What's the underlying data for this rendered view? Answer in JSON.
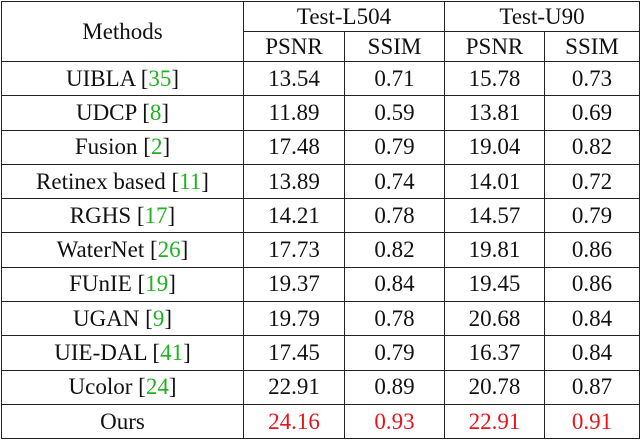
{
  "table": {
    "header": {
      "methods": "Methods",
      "groups": [
        "Test-L504",
        "Test-U90"
      ],
      "metrics": [
        "PSNR",
        "SSIM",
        "PSNR",
        "SSIM"
      ]
    },
    "rows": [
      {
        "method": "UIBLA",
        "ref": "35",
        "values": [
          13.54,
          0.71,
          15.78,
          0.73
        ]
      },
      {
        "method": "UDCP",
        "ref": "8",
        "values": [
          11.89,
          0.59,
          13.81,
          0.69
        ]
      },
      {
        "method": "Fusion",
        "ref": "2",
        "values": [
          17.48,
          0.79,
          19.04,
          0.82
        ]
      },
      {
        "method": "Retinex based",
        "ref": "11",
        "values": [
          13.89,
          0.74,
          14.01,
          0.72
        ]
      },
      {
        "method": "RGHS",
        "ref": "17",
        "values": [
          14.21,
          0.78,
          14.57,
          0.79
        ]
      },
      {
        "method": "WaterNet",
        "ref": "26",
        "values": [
          17.73,
          0.82,
          19.81,
          0.86
        ]
      },
      {
        "method": "FUnIE",
        "ref": "19",
        "values": [
          19.37,
          0.84,
          19.45,
          0.86
        ]
      },
      {
        "method": "UGAN",
        "ref": "9",
        "values": [
          19.79,
          0.78,
          20.68,
          0.84
        ]
      },
      {
        "method": "UIE-DAL",
        "ref": "41",
        "values": [
          17.45,
          0.79,
          16.37,
          0.84
        ]
      },
      {
        "method": "Ucolor",
        "ref": "24",
        "values": [
          22.91,
          0.89,
          20.78,
          0.87
        ]
      },
      {
        "method": "Ours",
        "values": [
          24.16,
          0.93,
          22.91,
          0.91
        ],
        "highlight": true
      }
    ]
  }
}
